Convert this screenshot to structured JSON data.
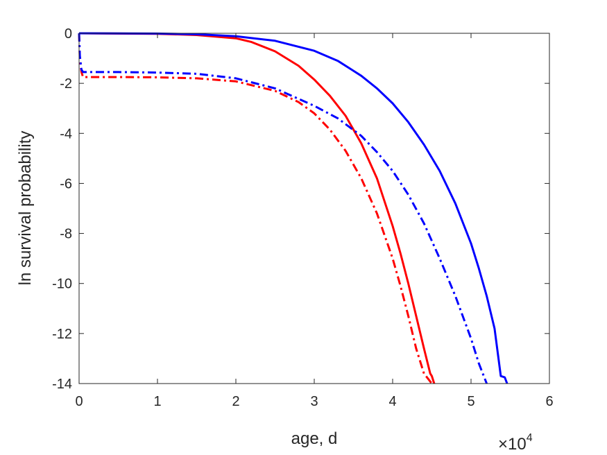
{
  "chart_data": {
    "type": "line",
    "xlabel": "age, d",
    "ylabel": "ln survival probability",
    "x_exponent_base": "×10",
    "x_exponent_power": "4",
    "xlim": [
      0,
      60000
    ],
    "ylim": [
      -14,
      0
    ],
    "xticks": [
      0,
      10000,
      20000,
      30000,
      40000,
      50000,
      60000
    ],
    "xtick_labels": [
      "0",
      "1",
      "2",
      "3",
      "4",
      "5",
      "6"
    ],
    "yticks": [
      0,
      -2,
      -4,
      -6,
      -8,
      -10,
      -12,
      -14
    ],
    "ytick_labels": [
      "0",
      "-2",
      "-4",
      "-6",
      "-8",
      "-10",
      "-12",
      "-14"
    ],
    "grid": false,
    "series": [
      {
        "color": "#ff0000",
        "style": "solid",
        "x": [
          0,
          10000,
          15000,
          20000,
          22000,
          25000,
          28000,
          30000,
          32000,
          34000,
          36000,
          38000,
          40000,
          41000,
          42000,
          43000,
          44000,
          44800,
          45000,
          45300
        ],
        "y": [
          0,
          -0.02,
          -0.07,
          -0.2,
          -0.35,
          -0.72,
          -1.3,
          -1.85,
          -2.5,
          -3.3,
          -4.4,
          -5.8,
          -7.7,
          -8.8,
          -10.0,
          -11.3,
          -12.6,
          -13.6,
          -13.7,
          -14.0
        ]
      },
      {
        "color": "#0000ff",
        "style": "solid",
        "x": [
          0,
          10000,
          15000,
          20000,
          25000,
          30000,
          33000,
          36000,
          38000,
          40000,
          42000,
          44000,
          46000,
          48000,
          50000,
          51000,
          52000,
          53000,
          53800,
          54300,
          54600
        ],
        "y": [
          0,
          -0.01,
          -0.04,
          -0.12,
          -0.3,
          -0.7,
          -1.1,
          -1.7,
          -2.2,
          -2.8,
          -3.55,
          -4.45,
          -5.5,
          -6.8,
          -8.4,
          -9.4,
          -10.5,
          -11.8,
          -13.7,
          -13.75,
          -14.0
        ]
      },
      {
        "color": "#ff0000",
        "style": "dashdot",
        "x": [
          0,
          100,
          300,
          500,
          2000,
          5000,
          10000,
          15000,
          20000,
          25000,
          28000,
          30000,
          32000,
          34000,
          36000,
          38000,
          40000,
          41000,
          42000,
          43000,
          44000,
          44500,
          45000
        ],
        "y": [
          0,
          -1.0,
          -1.55,
          -1.75,
          -1.75,
          -1.75,
          -1.76,
          -1.8,
          -1.92,
          -2.3,
          -2.75,
          -3.2,
          -3.85,
          -4.7,
          -5.8,
          -7.2,
          -9.0,
          -10.1,
          -11.3,
          -12.6,
          -13.6,
          -13.8,
          -14.0
        ]
      },
      {
        "color": "#0000ff",
        "style": "dashdot",
        "x": [
          0,
          100,
          300,
          500,
          2000,
          5000,
          10000,
          15000,
          20000,
          25000,
          30000,
          33000,
          36000,
          38000,
          40000,
          42000,
          44000,
          46000,
          48000,
          50000,
          51000,
          52000
        ],
        "y": [
          0,
          -0.9,
          -1.45,
          -1.55,
          -1.55,
          -1.55,
          -1.57,
          -1.62,
          -1.8,
          -2.2,
          -2.9,
          -3.4,
          -4.1,
          -4.75,
          -5.5,
          -6.45,
          -7.6,
          -9.0,
          -10.5,
          -12.2,
          -13.2,
          -14.0
        ]
      }
    ]
  }
}
